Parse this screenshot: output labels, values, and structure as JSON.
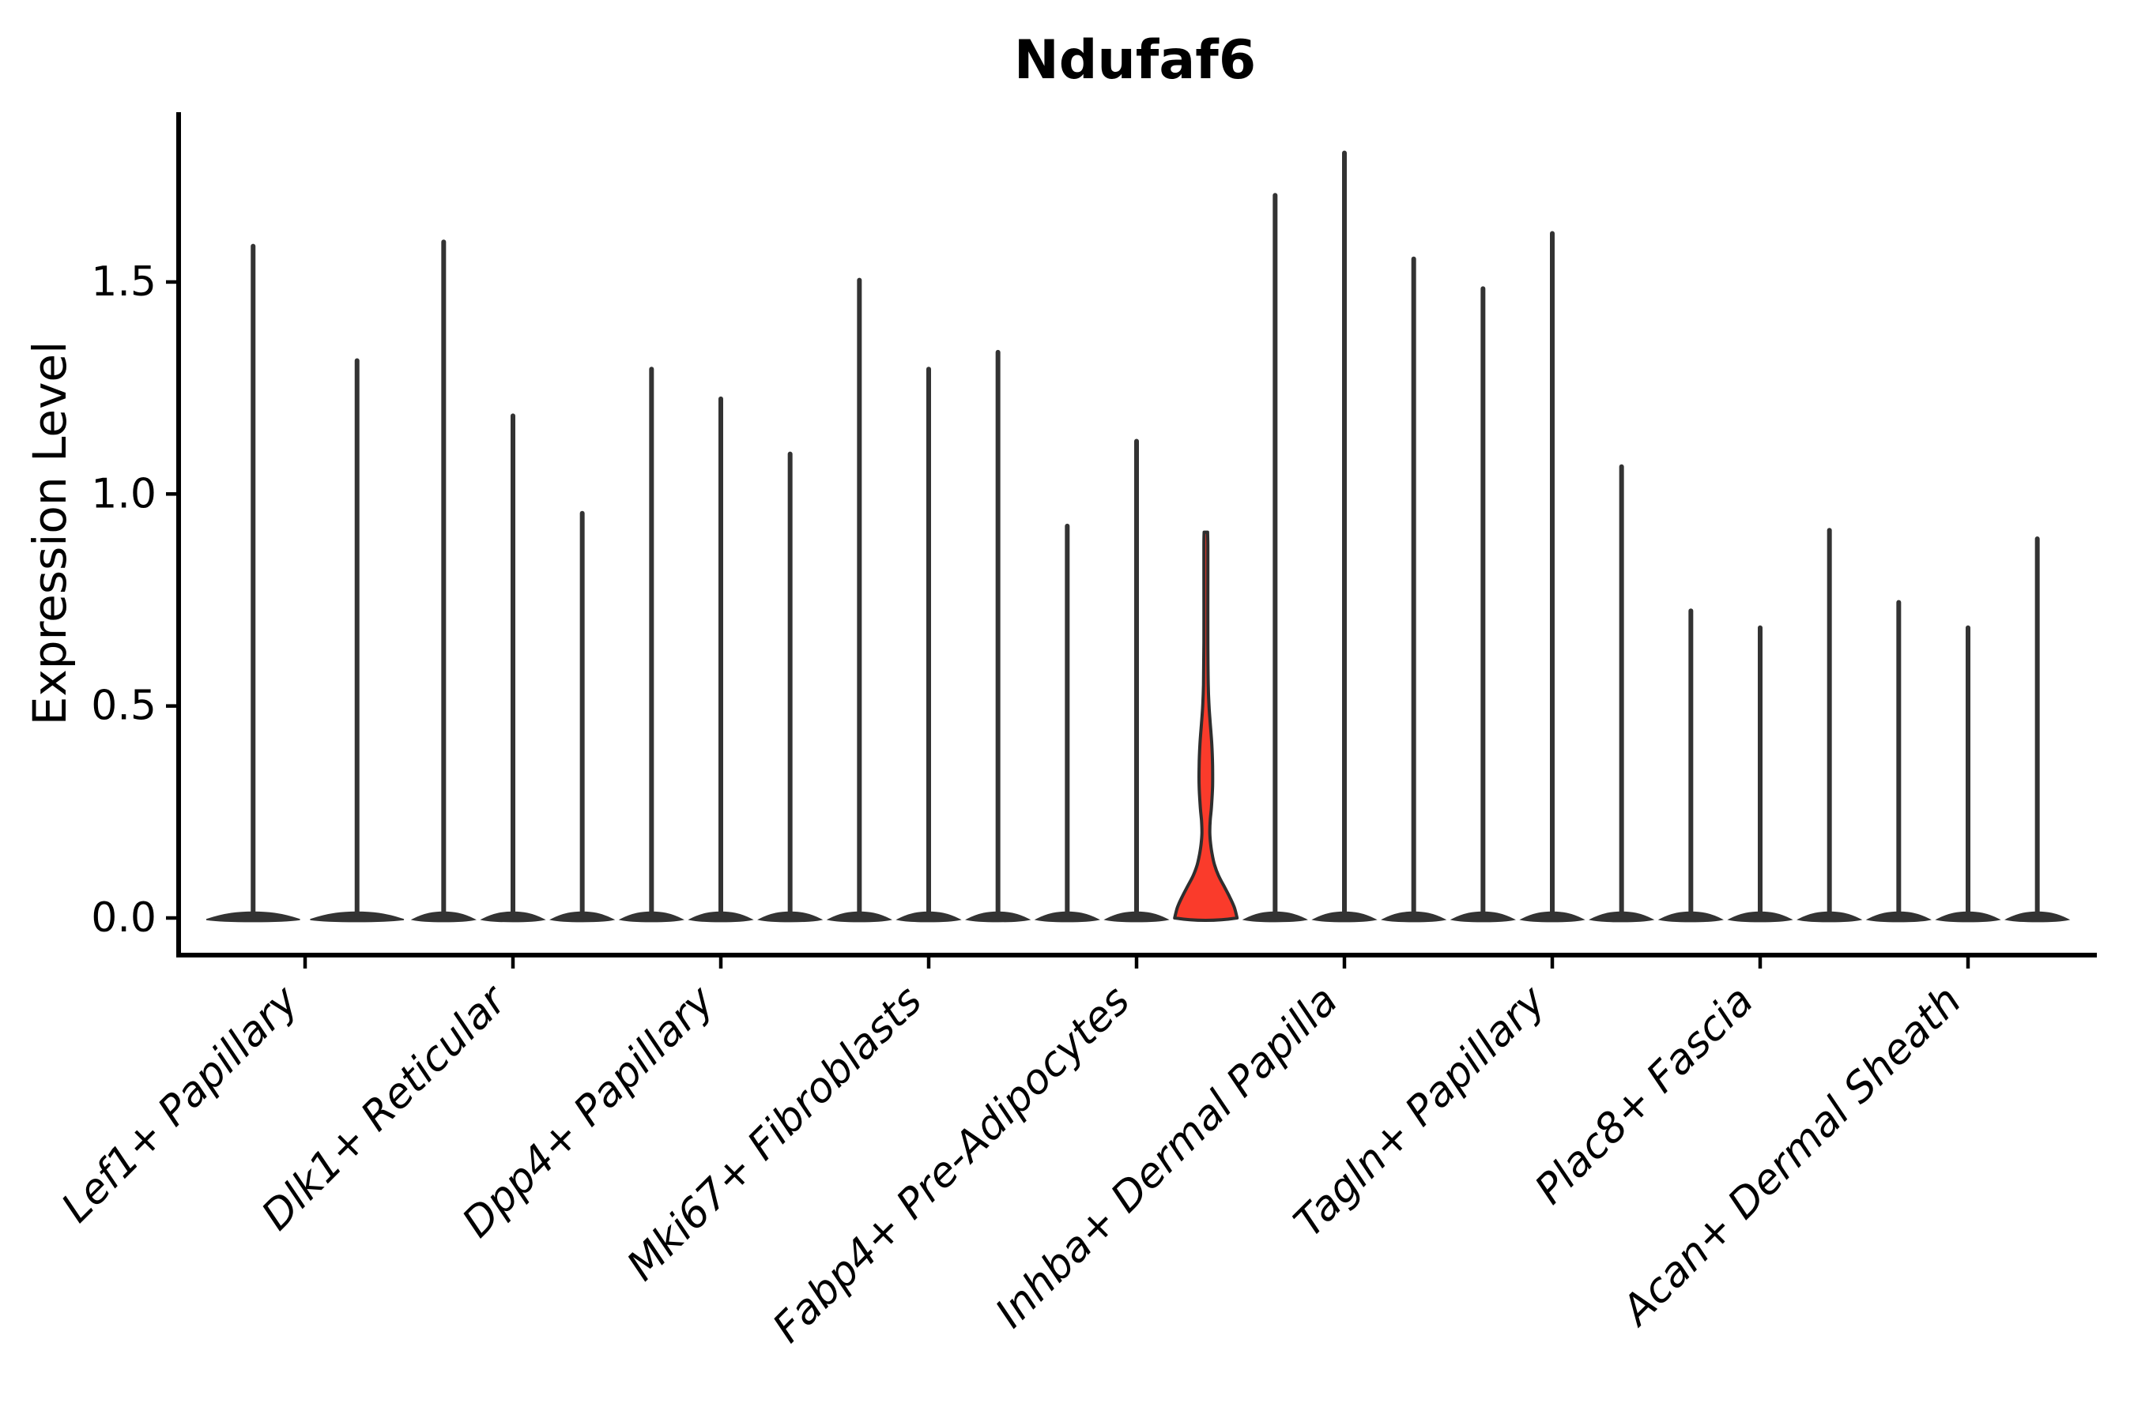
{
  "title": "Ndufaf6",
  "y_axis": {
    "label": "Expression Level",
    "tick_labels": [
      "0.0",
      "0.5",
      "1.0",
      "1.5"
    ]
  },
  "colors": {
    "violin_dark": "#333333",
    "highlight_fill": "#fa3b2b",
    "highlight_outline": "#2e2e2e",
    "axis": "#000000",
    "text": "#000000",
    "background": "#ffffff"
  },
  "chart_data": {
    "type": "violin",
    "title": "Ndufaf6",
    "xlabel": "",
    "ylabel": "Expression Level",
    "ylim": [
      0,
      1.9
    ],
    "yticks": [
      0.0,
      0.5,
      1.0,
      1.5
    ],
    "grid": false,
    "legend": "none",
    "categories": [
      "Lef1+ Papillary",
      "Dlk1+ Reticular",
      "Dpp4+ Papillary",
      "Mki67+ Fibroblasts",
      "Fabp4+ Pre-Adipocytes",
      "Inhba+ Dermal Papilla",
      "Tagln+ Papillary",
      "Plac8+ Fascia",
      "Acan+ Dermal Sheath"
    ],
    "description": "Violin plot of Ndufaf6 expression; each category holds narrow spike-shaped violins (most cells at 0, thin spike to max). Third violin of Fabp4+ Pre-Adipocytes is highlighted red.",
    "groups": [
      {
        "violins": [
          {
            "max": 1.59
          },
          {
            "max": 1.32
          }
        ]
      },
      {
        "violins": [
          {
            "max": 1.6
          },
          {
            "max": 1.19
          },
          {
            "max": 0.96
          }
        ]
      },
      {
        "violins": [
          {
            "max": 1.3
          },
          {
            "max": 1.23
          },
          {
            "max": 1.1
          }
        ]
      },
      {
        "violins": [
          {
            "max": 1.51
          },
          {
            "max": 1.3
          },
          {
            "max": 1.34
          }
        ]
      },
      {
        "violins": [
          {
            "max": 0.93
          },
          {
            "max": 1.13
          },
          {
            "max": 0.91,
            "highlight": true,
            "profile": [
              [
                0.0,
                39.5
              ],
              [
                0.025,
                36.0
              ],
              [
                0.05,
                30.0
              ],
              [
                0.075,
                23.0
              ],
              [
                0.1,
                16.0
              ],
              [
                0.125,
                11.0
              ],
              [
                0.15,
                8.0
              ],
              [
                0.175,
                6.0
              ],
              [
                0.2,
                5.0
              ],
              [
                0.23,
                5.5
              ],
              [
                0.26,
                7.0
              ],
              [
                0.31,
                8.5
              ],
              [
                0.36,
                8.5
              ],
              [
                0.41,
                7.5
              ],
              [
                0.46,
                5.5
              ],
              [
                0.5,
                4.0
              ],
              [
                0.55,
                3.0
              ],
              [
                0.65,
                2.5
              ],
              [
                0.8,
                2.5
              ],
              [
                0.88,
                2.5
              ],
              [
                0.91,
                2.2
              ]
            ]
          }
        ]
      },
      {
        "violins": [
          {
            "max": 1.71
          },
          {
            "max": 1.81
          },
          {
            "max": 1.56
          }
        ]
      },
      {
        "violins": [
          {
            "max": 1.49
          },
          {
            "max": 1.62
          },
          {
            "max": 1.07
          }
        ]
      },
      {
        "violins": [
          {
            "max": 0.73
          },
          {
            "max": 0.69
          },
          {
            "max": 0.92
          }
        ]
      },
      {
        "violins": [
          {
            "max": 0.75
          },
          {
            "max": 0.69
          },
          {
            "max": 0.9
          }
        ]
      }
    ]
  }
}
